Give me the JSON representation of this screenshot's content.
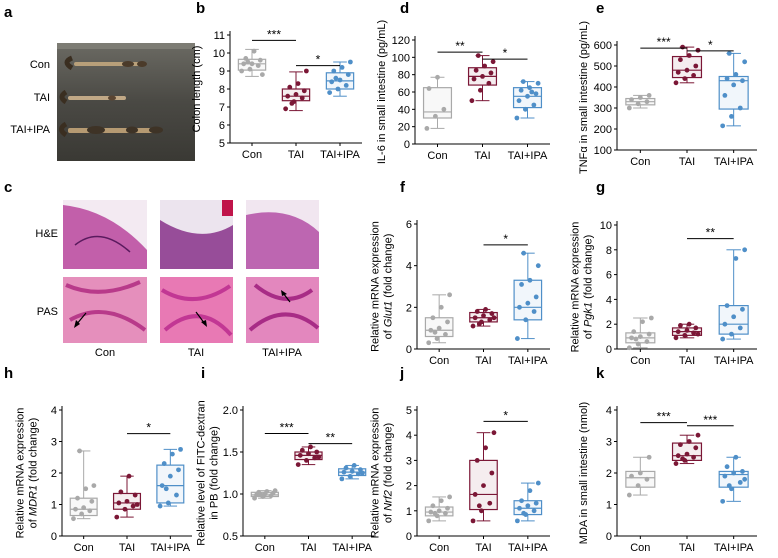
{
  "figure": {
    "panel_a": {
      "letter": "a",
      "rows": [
        "Con",
        "TAI",
        "TAI+IPA"
      ]
    },
    "panel_c": {
      "letter": "c",
      "rows": [
        "H&E",
        "PAS"
      ],
      "columns": [
        "Con",
        "TAI",
        "TAI+IPA"
      ]
    }
  },
  "colors": {
    "Con": "#a9a9a9",
    "TAI": "#7b1736",
    "TAI+IPA": "#4f8fc8"
  },
  "chart_data": [
    {
      "id": "b",
      "letter": "b",
      "type": "box",
      "categories": [
        "Con",
        "TAI",
        "TAI+IPA"
      ],
      "ylabel": "Colon length (cm)",
      "ylim": [
        5,
        11
      ],
      "yticks": [
        5,
        6,
        7,
        8,
        9,
        10,
        11
      ],
      "series": [
        {
          "name": "Con",
          "q1": 9.05,
          "median": 9.4,
          "q3": 9.65,
          "whisker_low": 8.7,
          "whisker_high": 10.2,
          "points": [
            9.0,
            9.1,
            9.3,
            9.4,
            9.4,
            9.6,
            9.7,
            10.1,
            8.8,
            9.5
          ]
        },
        {
          "name": "TAI",
          "q1": 7.35,
          "median": 7.6,
          "q3": 8.0,
          "whisker_low": 6.8,
          "whisker_high": 8.95,
          "points": [
            6.9,
            7.3,
            7.5,
            7.6,
            7.7,
            7.9,
            8.1,
            8.3,
            9.0,
            7.2
          ]
        },
        {
          "name": "TAI+IPA",
          "q1": 8.0,
          "median": 8.45,
          "q3": 8.9,
          "whisker_low": 7.6,
          "whisker_high": 9.5,
          "points": [
            7.8,
            8.0,
            8.2,
            8.4,
            8.5,
            8.8,
            9.0,
            9.2,
            9.5,
            8.6
          ]
        }
      ],
      "significance": [
        {
          "from": 0,
          "to": 1,
          "label": "***",
          "y": 10.7
        },
        {
          "from": 1,
          "to": 2,
          "label": "*",
          "y": 9.3
        }
      ]
    },
    {
      "id": "d",
      "letter": "d",
      "type": "box",
      "categories": [
        "Con",
        "TAI",
        "TAI+IPA"
      ],
      "ylabel": "IL-6 in small intestine (pg/mL)",
      "ylim": [
        0,
        120
      ],
      "yticks": [
        0,
        20,
        40,
        60,
        80,
        100,
        120
      ],
      "series": [
        {
          "name": "Con",
          "q1": 30,
          "median": 37,
          "q3": 65,
          "whisker_low": 18,
          "whisker_high": 77,
          "points": [
            18,
            32,
            40,
            64,
            77
          ]
        },
        {
          "name": "TAI",
          "q1": 68,
          "median": 78,
          "q3": 88,
          "whisker_low": 50,
          "whisker_high": 102,
          "points": [
            50,
            62,
            70,
            75,
            78,
            82,
            85,
            90,
            95,
            102
          ]
        },
        {
          "name": "TAI+IPA",
          "q1": 42,
          "median": 55,
          "q3": 65,
          "whisker_low": 30,
          "whisker_high": 72,
          "points": [
            30,
            40,
            45,
            50,
            55,
            58,
            62,
            65,
            70,
            72,
            60
          ]
        }
      ],
      "significance": [
        {
          "from": 0,
          "to": 1,
          "label": "**",
          "y": 106
        },
        {
          "from": 1,
          "to": 2,
          "label": "*",
          "y": 98
        }
      ]
    },
    {
      "id": "e",
      "letter": "e",
      "type": "box",
      "categories": [
        "Con",
        "TAI",
        "TAI+IPA"
      ],
      "ylabel": "TNFα in small intestine (pg/mL)",
      "ylim": [
        100,
        600
      ],
      "yticks": [
        100,
        200,
        300,
        400,
        500,
        600
      ],
      "series": [
        {
          "name": "Con",
          "q1": 315,
          "median": 330,
          "q3": 345,
          "whisker_low": 300,
          "whisker_high": 360,
          "points": [
            300,
            320,
            330,
            340,
            350,
            360
          ]
        },
        {
          "name": "TAI",
          "q1": 445,
          "median": 480,
          "q3": 545,
          "whisker_low": 420,
          "whisker_high": 590,
          "points": [
            420,
            440,
            455,
            470,
            480,
            500,
            530,
            550,
            575,
            590
          ]
        },
        {
          "name": "TAI+IPA",
          "q1": 295,
          "median": 430,
          "q3": 450,
          "whisker_low": 215,
          "whisker_high": 560,
          "points": [
            215,
            260,
            300,
            360,
            410,
            430,
            440,
            460,
            520,
            560
          ]
        }
      ],
      "significance": [
        {
          "from": 0,
          "to": 1,
          "label": "***",
          "y": 585
        },
        {
          "from": 1,
          "to": 2,
          "label": "*",
          "y": 572
        }
      ]
    },
    {
      "id": "f",
      "letter": "f",
      "type": "box",
      "categories": [
        "Con",
        "TAI",
        "TAI+IPA"
      ],
      "ylabel_lines": [
        "Relative mRNA expression",
        "of Glut1 (fold change)"
      ],
      "ylim": [
        0,
        6
      ],
      "yticks": [
        0,
        2,
        4,
        6
      ],
      "series": [
        {
          "name": "Con",
          "q1": 0.6,
          "median": 0.9,
          "q3": 1.5,
          "whisker_low": 0.3,
          "whisker_high": 2.6,
          "points": [
            0.3,
            0.5,
            0.7,
            0.9,
            1.0,
            1.3,
            1.5,
            2.0,
            2.6,
            0.8
          ]
        },
        {
          "name": "TAI",
          "q1": 1.3,
          "median": 1.5,
          "q3": 1.75,
          "whisker_low": 1.1,
          "whisker_high": 1.9,
          "points": [
            1.1,
            1.3,
            1.4,
            1.5,
            1.6,
            1.7,
            1.8,
            1.9,
            1.5,
            1.2
          ]
        },
        {
          "name": "TAI+IPA",
          "q1": 1.4,
          "median": 2.0,
          "q3": 3.3,
          "whisker_low": 0.5,
          "whisker_high": 4.6,
          "points": [
            0.5,
            1.4,
            1.8,
            2.0,
            2.2,
            2.5,
            3.1,
            3.3,
            4.0,
            4.6
          ]
        }
      ],
      "significance": [
        {
          "from": 1,
          "to": 2,
          "label": "*",
          "y": 5.0
        }
      ]
    },
    {
      "id": "g",
      "letter": "g",
      "type": "box",
      "categories": [
        "Con",
        "TAI",
        "TAI+IPA"
      ],
      "ylabel_lines": [
        "Relative mRNA expression",
        "of Pgk1 (fold change)"
      ],
      "ylim": [
        0,
        10
      ],
      "yticks": [
        0,
        2,
        4,
        6,
        8,
        10
      ],
      "series": [
        {
          "name": "Con",
          "q1": 0.5,
          "median": 0.9,
          "q3": 1.3,
          "whisker_low": 0.1,
          "whisker_high": 2.5,
          "points": [
            0.1,
            0.4,
            0.6,
            0.9,
            1.0,
            1.2,
            1.4,
            2.2,
            2.5,
            0.8
          ]
        },
        {
          "name": "TAI",
          "q1": 1.1,
          "median": 1.4,
          "q3": 1.7,
          "whisker_low": 0.9,
          "whisker_high": 2.0,
          "points": [
            0.9,
            1.1,
            1.3,
            1.4,
            1.5,
            1.7,
            1.9,
            2.0,
            1.2
          ]
        },
        {
          "name": "TAI+IPA",
          "q1": 1.2,
          "median": 2.0,
          "q3": 3.5,
          "whisker_low": 0.8,
          "whisker_high": 8.0,
          "points": [
            0.8,
            1.2,
            1.7,
            2.0,
            2.6,
            3.2,
            3.5,
            7.3,
            8.0
          ]
        }
      ],
      "significance": [
        {
          "from": 1,
          "to": 2,
          "label": "**",
          "y": 8.9
        }
      ]
    },
    {
      "id": "h",
      "letter": "h",
      "type": "box",
      "categories": [
        "Con",
        "TAI",
        "TAI+IPA"
      ],
      "ylabel_lines": [
        "Relative mRNA expression",
        "of MDR1 (fold change)"
      ],
      "ylim": [
        0,
        4
      ],
      "yticks": [
        0,
        1,
        2,
        3,
        4
      ],
      "series": [
        {
          "name": "Con",
          "q1": 0.65,
          "median": 0.85,
          "q3": 1.2,
          "whisker_low": 0.55,
          "whisker_high": 2.7,
          "points": [
            0.55,
            0.7,
            0.8,
            0.85,
            0.9,
            1.1,
            1.2,
            1.5,
            1.6,
            2.7
          ]
        },
        {
          "name": "TAI",
          "q1": 0.85,
          "median": 1.05,
          "q3": 1.35,
          "whisker_low": 0.6,
          "whisker_high": 1.9,
          "points": [
            0.6,
            0.85,
            0.95,
            1.05,
            1.1,
            1.3,
            1.4,
            1.9,
            1.0
          ]
        },
        {
          "name": "TAI+IPA",
          "q1": 1.05,
          "median": 1.6,
          "q3": 2.25,
          "whisker_low": 0.95,
          "whisker_high": 2.75,
          "points": [
            0.95,
            1.05,
            1.3,
            1.6,
            1.9,
            2.1,
            2.3,
            2.6,
            2.75,
            1.5
          ]
        }
      ],
      "significance": [
        {
          "from": 1,
          "to": 2,
          "label": "*",
          "y": 3.25
        }
      ]
    },
    {
      "id": "i",
      "letter": "i",
      "type": "box",
      "categories": [
        "Con",
        "TAI",
        "TAI+IPA"
      ],
      "ylabel_lines": [
        "Relative level of FITC-dextran",
        "in PB (fold change)"
      ],
      "ylim": [
        0.5,
        2.0
      ],
      "yticks": [
        0.5,
        1.0,
        1.5,
        2.0
      ],
      "series": [
        {
          "name": "Con",
          "q1": 0.97,
          "median": 0.99,
          "q3": 1.02,
          "whisker_low": 0.95,
          "whisker_high": 1.04,
          "points": [
            0.95,
            0.97,
            0.98,
            0.99,
            1.0,
            1.01,
            1.02,
            1.03,
            1.04,
            0.99
          ]
        },
        {
          "name": "TAI",
          "q1": 1.41,
          "median": 1.46,
          "q3": 1.5,
          "whisker_low": 1.35,
          "whisker_high": 1.56,
          "points": [
            1.35,
            1.4,
            1.43,
            1.46,
            1.48,
            1.5,
            1.52,
            1.56,
            1.44
          ]
        },
        {
          "name": "TAI+IPA",
          "q1": 1.22,
          "median": 1.26,
          "q3": 1.3,
          "whisker_low": 1.18,
          "whisker_high": 1.34,
          "points": [
            1.18,
            1.21,
            1.24,
            1.26,
            1.27,
            1.29,
            1.31,
            1.34,
            1.25
          ]
        }
      ],
      "significance": [
        {
          "from": 0,
          "to": 1,
          "label": "***",
          "y": 1.72
        },
        {
          "from": 1,
          "to": 2,
          "label": "**",
          "y": 1.6
        }
      ]
    },
    {
      "id": "j",
      "letter": "j",
      "type": "box",
      "categories": [
        "Con",
        "TAI",
        "TAI+IPA"
      ],
      "ylabel_lines": [
        "Relative mRNA expression",
        "of Nrf2 (fold change)"
      ],
      "ylim": [
        0,
        5
      ],
      "yticks": [
        0,
        1,
        2,
        3,
        4,
        5
      ],
      "series": [
        {
          "name": "Con",
          "q1": 0.8,
          "median": 0.95,
          "q3": 1.15,
          "whisker_low": 0.6,
          "whisker_high": 1.55,
          "points": [
            0.6,
            0.8,
            0.9,
            0.95,
            1.0,
            1.1,
            1.2,
            1.4,
            1.55,
            0.9
          ]
        },
        {
          "name": "TAI",
          "q1": 1.05,
          "median": 1.65,
          "q3": 3.0,
          "whisker_low": 0.6,
          "whisker_high": 4.1,
          "points": [
            0.6,
            1.0,
            1.3,
            1.65,
            2.0,
            2.5,
            3.0,
            3.5,
            4.1,
            1.2
          ]
        },
        {
          "name": "TAI+IPA",
          "q1": 0.85,
          "median": 1.1,
          "q3": 1.4,
          "whisker_low": 0.6,
          "whisker_high": 2.1,
          "points": [
            0.6,
            0.85,
            1.0,
            1.1,
            1.2,
            1.3,
            1.4,
            1.8,
            2.1,
            0.9
          ]
        }
      ],
      "significance": [
        {
          "from": 1,
          "to": 2,
          "label": "*",
          "y": 4.55
        }
      ]
    },
    {
      "id": "k",
      "letter": "k",
      "type": "box",
      "categories": [
        "Con",
        "TAI",
        "TAI+IPA"
      ],
      "ylabel": "MDA in small intestine (nmol)",
      "ylim": [
        0,
        4
      ],
      "yticks": [
        0,
        1,
        2,
        3,
        4
      ],
      "series": [
        {
          "name": "Con",
          "q1": 1.55,
          "median": 1.85,
          "q3": 2.05,
          "whisker_low": 1.3,
          "whisker_high": 2.5,
          "points": [
            1.3,
            1.6,
            1.8,
            1.9,
            2.0,
            2.5
          ]
        },
        {
          "name": "TAI",
          "q1": 2.4,
          "median": 2.55,
          "q3": 2.95,
          "whisker_low": 2.3,
          "whisker_high": 3.2,
          "points": [
            2.3,
            2.4,
            2.5,
            2.55,
            2.6,
            2.8,
            2.9,
            3.0,
            3.2,
            2.45
          ]
        },
        {
          "name": "TAI+IPA",
          "q1": 1.55,
          "median": 1.95,
          "q3": 2.05,
          "whisker_low": 1.1,
          "whisker_high": 2.5,
          "points": [
            1.1,
            1.5,
            1.7,
            1.9,
            2.0,
            2.05,
            2.2,
            2.5,
            1.8,
            1.6
          ]
        }
      ],
      "significance": [
        {
          "from": 0,
          "to": 1,
          "label": "***",
          "y": 3.6
        },
        {
          "from": 1,
          "to": 2,
          "label": "***",
          "y": 3.5
        }
      ]
    }
  ]
}
